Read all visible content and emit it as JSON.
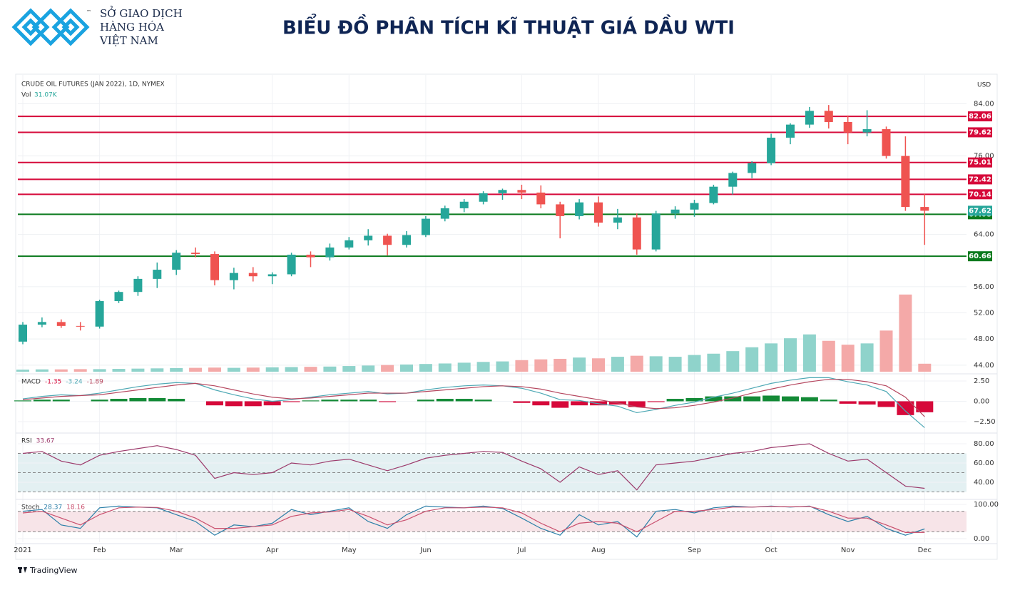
{
  "header": {
    "org_lines": [
      "SỞ GIAO DỊCH",
      "HÀNG HÓA",
      "VIỆT NAM"
    ],
    "trademark": "™",
    "title": "BIỂU ĐỒ PHÂN TÍCH KĨ THUẬT GIÁ DẦU WTI"
  },
  "footer": {
    "brand": "TradingView"
  },
  "chart_data": [
    {
      "type": "candlestick",
      "title": "CRUDE OIL FUTURES (JAN 2022), 1D, NYMEX",
      "y_unit": "USD",
      "grid": true,
      "categories": [
        "2021",
        null,
        null,
        null,
        "Feb",
        null,
        null,
        null,
        "Mar",
        null,
        null,
        null,
        null,
        "Apr",
        null,
        null,
        null,
        "May",
        null,
        null,
        null,
        "Jun",
        null,
        null,
        null,
        null,
        "Jul",
        null,
        null,
        null,
        "Aug",
        null,
        null,
        null,
        null,
        "Sep",
        null,
        null,
        null,
        "Oct",
        null,
        null,
        null,
        "Nov",
        null,
        null,
        null,
        "Dec"
      ],
      "open": [
        47.6,
        50.2,
        50.6,
        50.0,
        49.9,
        53.8,
        55.2,
        57.2,
        58.6,
        61.2,
        61.0,
        57.0,
        58.1,
        57.6,
        57.9,
        60.9,
        60.5,
        62.0,
        63.1,
        63.8,
        62.4,
        63.9,
        66.4,
        68.0,
        69.0,
        70.3,
        70.8,
        70.4,
        68.6,
        66.8,
        68.9,
        65.8,
        66.6,
        61.7,
        67.2,
        67.8,
        68.8,
        71.3,
        73.4,
        74.9,
        78.8,
        80.8,
        82.9,
        81.2,
        79.6,
        80.1,
        76.0,
        68.2
      ],
      "high": [
        50.6,
        51.3,
        51.0,
        50.6,
        54.0,
        55.4,
        57.6,
        59.7,
        61.6,
        62.0,
        61.4,
        58.9,
        59.0,
        58.2,
        61.2,
        61.4,
        62.6,
        63.6,
        64.8,
        64.1,
        64.5,
        66.8,
        68.4,
        69.4,
        70.6,
        71.0,
        71.6,
        71.5,
        69.0,
        69.4,
        69.8,
        67.9,
        67.2,
        67.6,
        68.3,
        69.3,
        71.6,
        73.6,
        75.2,
        79.4,
        81.0,
        83.5,
        83.8,
        82.2,
        83.0,
        80.5,
        79.0,
        70.2
      ],
      "low": [
        47.2,
        49.8,
        49.7,
        49.3,
        49.6,
        53.5,
        54.6,
        55.8,
        57.8,
        60.5,
        56.2,
        55.6,
        56.8,
        56.4,
        57.6,
        59.0,
        60.0,
        61.7,
        62.3,
        60.8,
        62.0,
        63.6,
        66.0,
        67.4,
        68.6,
        69.3,
        69.4,
        68.0,
        63.4,
        66.3,
        65.2,
        64.8,
        60.9,
        61.4,
        66.4,
        66.7,
        68.6,
        70.1,
        72.6,
        74.6,
        77.8,
        80.3,
        80.2,
        77.8,
        79.0,
        75.6,
        67.6,
        62.4
      ],
      "close": [
        50.2,
        50.6,
        50.0,
        49.9,
        53.8,
        55.2,
        57.2,
        58.6,
        61.2,
        61.0,
        57.0,
        58.1,
        57.6,
        57.9,
        60.9,
        60.5,
        62.0,
        63.1,
        63.8,
        62.4,
        63.9,
        66.4,
        68.0,
        69.0,
        70.3,
        70.8,
        70.4,
        68.6,
        66.8,
        68.9,
        65.8,
        66.6,
        61.7,
        67.2,
        67.8,
        68.8,
        71.3,
        73.4,
        74.9,
        78.8,
        80.8,
        82.9,
        81.2,
        79.6,
        80.1,
        76.0,
        68.2,
        67.62
      ],
      "up_color": "#26a69a",
      "down_color": "#ef5350",
      "volume": {
        "name": "Vol",
        "colors": [
          "#8fd3cb",
          "#f4a9a8"
        ],
        "values": [
          8,
          9,
          9,
          10,
          10,
          11,
          12,
          13,
          14,
          15,
          16,
          15,
          16,
          17,
          18,
          19,
          20,
          22,
          24,
          26,
          28,
          30,
          32,
          35,
          38,
          40,
          45,
          48,
          50,
          55,
          52,
          58,
          62,
          60,
          58,
          65,
          70,
          80,
          95,
          110,
          130,
          145,
          120,
          105,
          110,
          160,
          300,
          31.07
        ],
        "value_labels": [
          null,
          null,
          null,
          null,
          null,
          null,
          null,
          null,
          null,
          null,
          null,
          null,
          null,
          null,
          null,
          null,
          null,
          null,
          null,
          null,
          null,
          null,
          null,
          null,
          null,
          null,
          null,
          null,
          null,
          null,
          null,
          null,
          null,
          null,
          null,
          null,
          null,
          null,
          null,
          null,
          null,
          null,
          null,
          null,
          null,
          null,
          null,
          "31.07K"
        ]
      },
      "levels": [
        {
          "value": 82.06,
          "color": "#d6093a"
        },
        {
          "value": 79.62,
          "color": "#d6093a"
        },
        {
          "value": 75.01,
          "color": "#d6093a"
        },
        {
          "value": 72.42,
          "color": "#d6093a"
        },
        {
          "value": 70.14,
          "color": "#d6093a"
        },
        {
          "value": 67.08,
          "color": "#0b7a1e"
        },
        {
          "value": 60.66,
          "color": "#0b7a1e"
        }
      ],
      "ylim": [
        43.0,
        88.4
      ],
      "yticks": [
        {
          "value": 84,
          "label": "84.00"
        },
        {
          "value": 76,
          "label": "76.00"
        },
        {
          "value": 64,
          "label": "64.00"
        },
        {
          "value": 56,
          "label": "56.00"
        },
        {
          "value": 52,
          "label": "52.00"
        },
        {
          "value": 48,
          "label": "48.00"
        },
        {
          "value": 44,
          "label": "44.00"
        }
      ]
    },
    {
      "type": "line",
      "title": "MACD",
      "ylim": [
        -3.73,
        3.11
      ],
      "yticks": [
        {
          "value": 2.5,
          "label": "2.50"
        },
        {
          "value": 0,
          "label": "0.00"
        },
        {
          "value": -2.5,
          "label": "−2.50"
        }
      ],
      "series": [
        {
          "style": "histogram",
          "color": "#138a36",
          "negative_color": "#d6093a",
          "values": [
            0.1,
            0.2,
            0.2,
            0.0,
            0.2,
            0.3,
            0.4,
            0.4,
            0.3,
            0.0,
            -0.5,
            -0.6,
            -0.6,
            -0.5,
            -0.1,
            0.1,
            0.2,
            0.2,
            0.2,
            -0.1,
            0.0,
            0.2,
            0.3,
            0.3,
            0.2,
            0.0,
            -0.2,
            -0.5,
            -0.8,
            -0.5,
            -0.5,
            -0.4,
            -0.7,
            -0.1,
            0.3,
            0.4,
            0.6,
            0.6,
            0.6,
            0.7,
            0.6,
            0.5,
            0.2,
            -0.3,
            -0.4,
            -0.7,
            -1.7,
            -1.35
          ]
        },
        {
          "color": "#4fa9b5",
          "values": [
            0.3,
            0.6,
            0.8,
            0.7,
            1.0,
            1.4,
            1.8,
            2.1,
            2.3,
            2.2,
            1.4,
            0.8,
            0.3,
            0.0,
            0.2,
            0.5,
            0.8,
            1.0,
            1.2,
            0.9,
            1.0,
            1.4,
            1.7,
            1.9,
            2.0,
            1.9,
            1.6,
            1.0,
            0.2,
            0.1,
            -0.3,
            -0.6,
            -1.4,
            -1.0,
            -0.5,
            -0.1,
            0.5,
            1.0,
            1.6,
            2.2,
            2.6,
            2.9,
            2.9,
            2.4,
            2.0,
            1.2,
            -1.2,
            -3.24
          ]
        },
        {
          "color": "#b5475f",
          "values": [
            0.2,
            0.4,
            0.6,
            0.7,
            0.8,
            1.1,
            1.4,
            1.7,
            2.0,
            2.2,
            1.9,
            1.4,
            0.9,
            0.5,
            0.3,
            0.4,
            0.6,
            0.8,
            1.0,
            1.0,
            1.0,
            1.2,
            1.4,
            1.6,
            1.8,
            1.9,
            1.8,
            1.5,
            1.0,
            0.6,
            0.2,
            -0.2,
            -0.7,
            -0.9,
            -0.8,
            -0.5,
            -0.1,
            0.4,
            1.0,
            1.5,
            2.0,
            2.4,
            2.7,
            2.7,
            2.4,
            1.9,
            0.5,
            -1.89
          ]
        }
      ]
    },
    {
      "type": "line",
      "title": "RSI",
      "ylim": [
        22.2,
        88.9
      ],
      "band": [
        30,
        70
      ],
      "band_color": "#e3f0f2",
      "levels": [
        70,
        50,
        30
      ],
      "yticks": [
        {
          "value": 80,
          "label": "80.00"
        },
        {
          "value": 60,
          "label": "60.00"
        },
        {
          "value": 40,
          "label": "40.00"
        }
      ],
      "series": [
        {
          "color": "#9c3a6b",
          "values": [
            70,
            72,
            62,
            58,
            68,
            72,
            75,
            78,
            74,
            68,
            44,
            50,
            48,
            50,
            60,
            58,
            62,
            64,
            58,
            52,
            58,
            65,
            68,
            70,
            72,
            71,
            62,
            54,
            40,
            56,
            48,
            52,
            32,
            58,
            60,
            62,
            66,
            70,
            72,
            76,
            78,
            80,
            70,
            62,
            64,
            50,
            36,
            33.67
          ]
        }
      ]
    },
    {
      "type": "line",
      "title": "Stoch",
      "ylim": [
        -10.4,
        108.3
      ],
      "band": [
        20,
        80
      ],
      "band_color": "#f7e4e8",
      "levels": [
        80,
        20
      ],
      "yticks": [
        {
          "value": 100,
          "label": "100.00"
        },
        {
          "value": 0,
          "label": "0.00"
        }
      ],
      "series": [
        {
          "color": "#2b7fa8",
          "values": [
            80,
            85,
            40,
            30,
            90,
            95,
            92,
            90,
            70,
            50,
            10,
            40,
            35,
            45,
            85,
            70,
            80,
            90,
            50,
            30,
            70,
            95,
            92,
            90,
            95,
            88,
            60,
            30,
            10,
            70,
            40,
            50,
            5,
            80,
            85,
            75,
            90,
            95,
            92,
            95,
            92,
            95,
            70,
            50,
            65,
            30,
            10,
            28.37
          ]
        },
        {
          "color": "#c94f6d",
          "values": [
            75,
            80,
            60,
            40,
            70,
            90,
            92,
            91,
            80,
            60,
            30,
            30,
            35,
            40,
            65,
            75,
            78,
            85,
            65,
            40,
            55,
            80,
            90,
            90,
            92,
            90,
            75,
            45,
            20,
            45,
            50,
            45,
            20,
            50,
            80,
            80,
            85,
            92,
            92,
            94,
            93,
            94,
            80,
            60,
            60,
            40,
            18,
            18.16
          ]
        }
      ]
    }
  ]
}
